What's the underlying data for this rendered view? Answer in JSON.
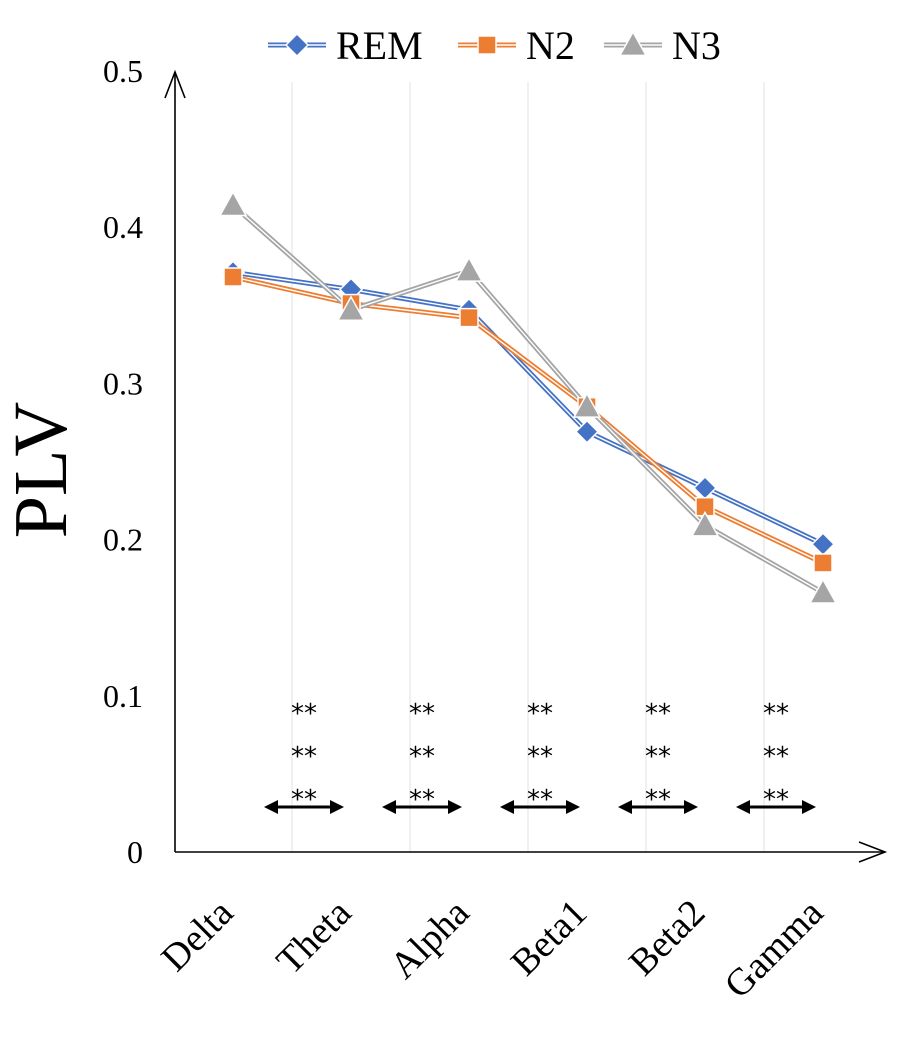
{
  "chart_data": {
    "type": "line",
    "title": "",
    "xlabel": "",
    "ylabel": "PLV",
    "categories": [
      "Delta",
      "Theta",
      "Alpha",
      "Beta1",
      "Beta2",
      "Gamma"
    ],
    "ylim": [
      0,
      0.5
    ],
    "yticks": [
      "0",
      "0.1",
      "0.2",
      "0.3",
      "0.4",
      "0.5"
    ],
    "ytick_values": [
      0,
      0.1,
      0.2,
      0.3,
      0.4,
      0.5
    ],
    "legend_position": "top",
    "grid": "vertical",
    "series": [
      {
        "name": "REM",
        "marker": "diamond",
        "color": "#4472C4",
        "values": [
          0.371,
          0.36,
          0.347,
          0.269,
          0.233,
          0.197
        ]
      },
      {
        "name": "N2",
        "marker": "square",
        "color": "#ED7D31",
        "values": [
          0.368,
          0.351,
          0.342,
          0.285,
          0.221,
          0.185
        ]
      },
      {
        "name": "N3",
        "marker": "triangle",
        "color": "#A5A5A5",
        "values": [
          0.414,
          0.347,
          0.372,
          0.285,
          0.209,
          0.166
        ]
      }
    ],
    "annotations": [
      {
        "between": [
          "Delta",
          "Theta"
        ],
        "rows": [
          "**",
          "**",
          "**"
        ]
      },
      {
        "between": [
          "Theta",
          "Alpha"
        ],
        "rows": [
          "**",
          "**",
          "**"
        ]
      },
      {
        "between": [
          "Alpha",
          "Beta1"
        ],
        "rows": [
          "**",
          "**",
          "**"
        ]
      },
      {
        "between": [
          "Beta1",
          "Beta2"
        ],
        "rows": [
          "**",
          "**",
          "**"
        ]
      },
      {
        "between": [
          "Beta2",
          "Gamma"
        ],
        "rows": [
          "**",
          "**",
          "**"
        ]
      }
    ]
  }
}
